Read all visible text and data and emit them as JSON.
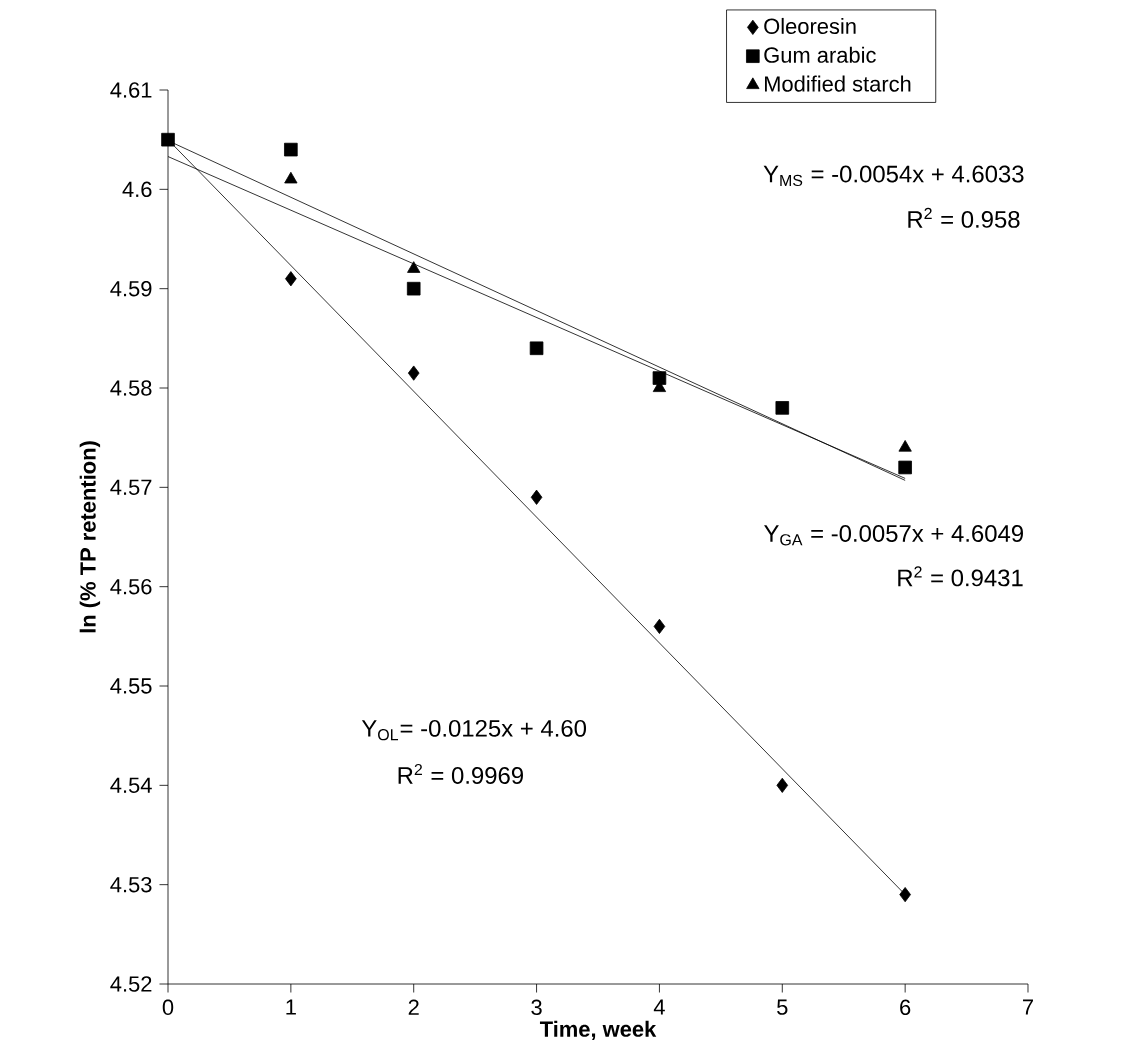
{
  "chart_data": {
    "type": "scatter",
    "xlabel": "Time, week",
    "ylabel": "ln (% TP retention)",
    "xlim": [
      0,
      7
    ],
    "xticks": [
      0,
      1,
      2,
      3,
      4,
      5,
      6,
      7
    ],
    "ylim": [
      4.52,
      4.61
    ],
    "yticks": [
      4.52,
      4.53,
      4.54,
      4.55,
      4.56,
      4.57,
      4.58,
      4.59,
      4.6,
      4.61
    ],
    "legend": "top right",
    "grid": false,
    "series": [
      {
        "name": "Oleoresin",
        "color": "#000000",
        "marker": "diamond",
        "x": [
          1,
          2,
          3,
          4,
          5,
          6
        ],
        "values": [
          4.591,
          4.5815,
          4.569,
          4.556,
          4.54,
          4.529
        ]
      },
      {
        "name": "Gum arabic",
        "color": "#000000",
        "marker": "square",
        "x": [
          0,
          1,
          2,
          3,
          4,
          5,
          6
        ],
        "values": [
          4.605,
          4.604,
          4.59,
          4.584,
          4.581,
          4.578,
          4.572
        ]
      },
      {
        "name": "Modified starch",
        "color": "#000000",
        "marker": "triangle",
        "x": [
          1,
          2,
          4,
          6
        ],
        "values": [
          4.601,
          4.592,
          4.58,
          4.574
        ]
      },
      {
        "type": "line",
        "color": "#000000",
        "marker": "none",
        "line_style": "solid",
        "x": [
          0,
          6
        ],
        "values": [
          4.605,
          4.529
        ]
      },
      {
        "type": "line",
        "color": "#000000",
        "marker": "none",
        "line_style": "solid",
        "x": [
          0,
          6
        ],
        "values": [
          4.6049,
          4.5707
        ]
      },
      {
        "type": "line",
        "color": "#000000",
        "marker": "none",
        "line_style": "solid",
        "x": [
          0,
          6
        ],
        "values": [
          4.6033,
          4.5709
        ]
      }
    ],
    "annotations": [
      "Y$_{MS}$ = -0.0054x + 4.6033",
      "R$^{2}$ = 0.958",
      "Y$_{GA}$ = -0.0057x + 4.6049",
      "R$^{2}$ = 0.9431",
      "Y$_{OL}$= -0.0125x + 4.60",
      "R$^{2}$ = 0.9969"
    ]
  }
}
